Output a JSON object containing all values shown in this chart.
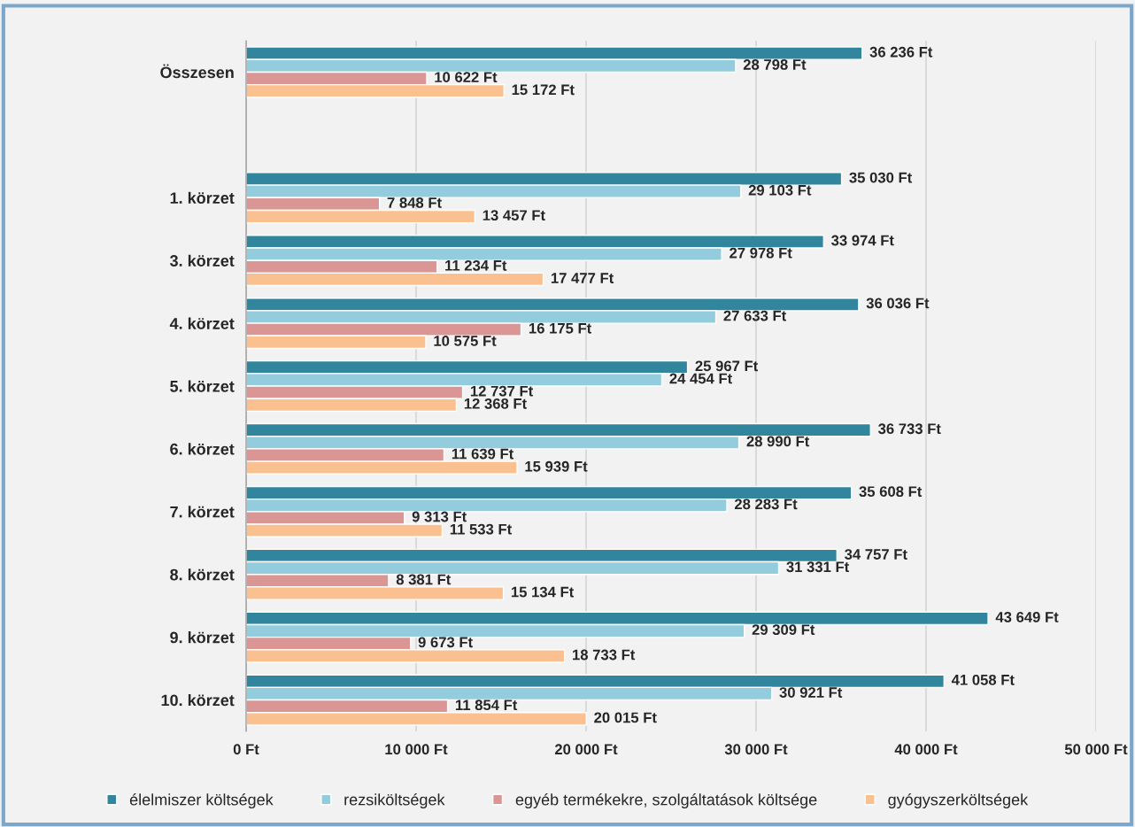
{
  "chart_data": {
    "type": "bar",
    "orientation": "horizontal",
    "categories": [
      "Összesen",
      null,
      "1. körzet",
      "3. körzet",
      "4. körzet",
      "5. körzet",
      "6. körzet",
      "7. körzet",
      "8. körzet",
      "9. körzet",
      "10. körzet"
    ],
    "series": [
      {
        "name": "élelmiszer költségek",
        "color": "#31859c",
        "values": [
          36236,
          null,
          35030,
          33974,
          36036,
          25967,
          36733,
          35608,
          34757,
          43649,
          41058
        ],
        "value_labels": [
          "36 236 Ft",
          null,
          "35 030 Ft",
          "33 974 Ft",
          "36 036 Ft",
          "25 967 Ft",
          "36 733 Ft",
          "35 608 Ft",
          "34 757 Ft",
          "43 649 Ft",
          "41 058 Ft"
        ]
      },
      {
        "name": "rezsiköltségek",
        "color": "#93cddd",
        "values": [
          28798,
          null,
          29103,
          27978,
          27633,
          24454,
          28990,
          28283,
          31331,
          29309,
          30921
        ],
        "value_labels": [
          "28 798 Ft",
          null,
          "29 103 Ft",
          "27 978 Ft",
          "27 633 Ft",
          "24 454 Ft",
          "28 990 Ft",
          "28 283 Ft",
          "31 331 Ft",
          "29 309 Ft",
          "30 921 Ft"
        ]
      },
      {
        "name": "egyéb termékekre, szolgáltatások költsége",
        "color": "#d99694",
        "values": [
          10622,
          null,
          7848,
          11234,
          16175,
          12737,
          11639,
          9313,
          8381,
          9673,
          11854
        ],
        "value_labels": [
          "10 622 Ft",
          null,
          "7 848 Ft",
          "11 234 Ft",
          "16 175 Ft",
          "12 737 Ft",
          "11 639 Ft",
          "9 313 Ft",
          "8 381 Ft",
          "9 673 Ft",
          "11 854 Ft"
        ]
      },
      {
        "name": "gyógyszerköltségek",
        "color": "#fac090",
        "values": [
          15172,
          null,
          13457,
          17477,
          10575,
          12368,
          15939,
          11533,
          15134,
          18733,
          20015
        ],
        "value_labels": [
          "15 172 Ft",
          null,
          "13 457 Ft",
          "17 477 Ft",
          "10 575 Ft",
          "12 368 Ft",
          "15 939 Ft",
          "11 533 Ft",
          "15 134 Ft",
          "18 733 Ft",
          "20 015 Ft"
        ]
      }
    ],
    "xlim": [
      0,
      50000
    ],
    "xticks": [
      {
        "value": 0,
        "label": "0 Ft"
      },
      {
        "value": 10000,
        "label": "10 000 Ft"
      },
      {
        "value": 20000,
        "label": "20 000 Ft"
      },
      {
        "value": 30000,
        "label": "30 000 Ft"
      },
      {
        "value": 40000,
        "label": "40 000 Ft"
      },
      {
        "value": 50000,
        "label": "50 000 Ft"
      }
    ],
    "grid": "x",
    "legend": "bottom"
  }
}
